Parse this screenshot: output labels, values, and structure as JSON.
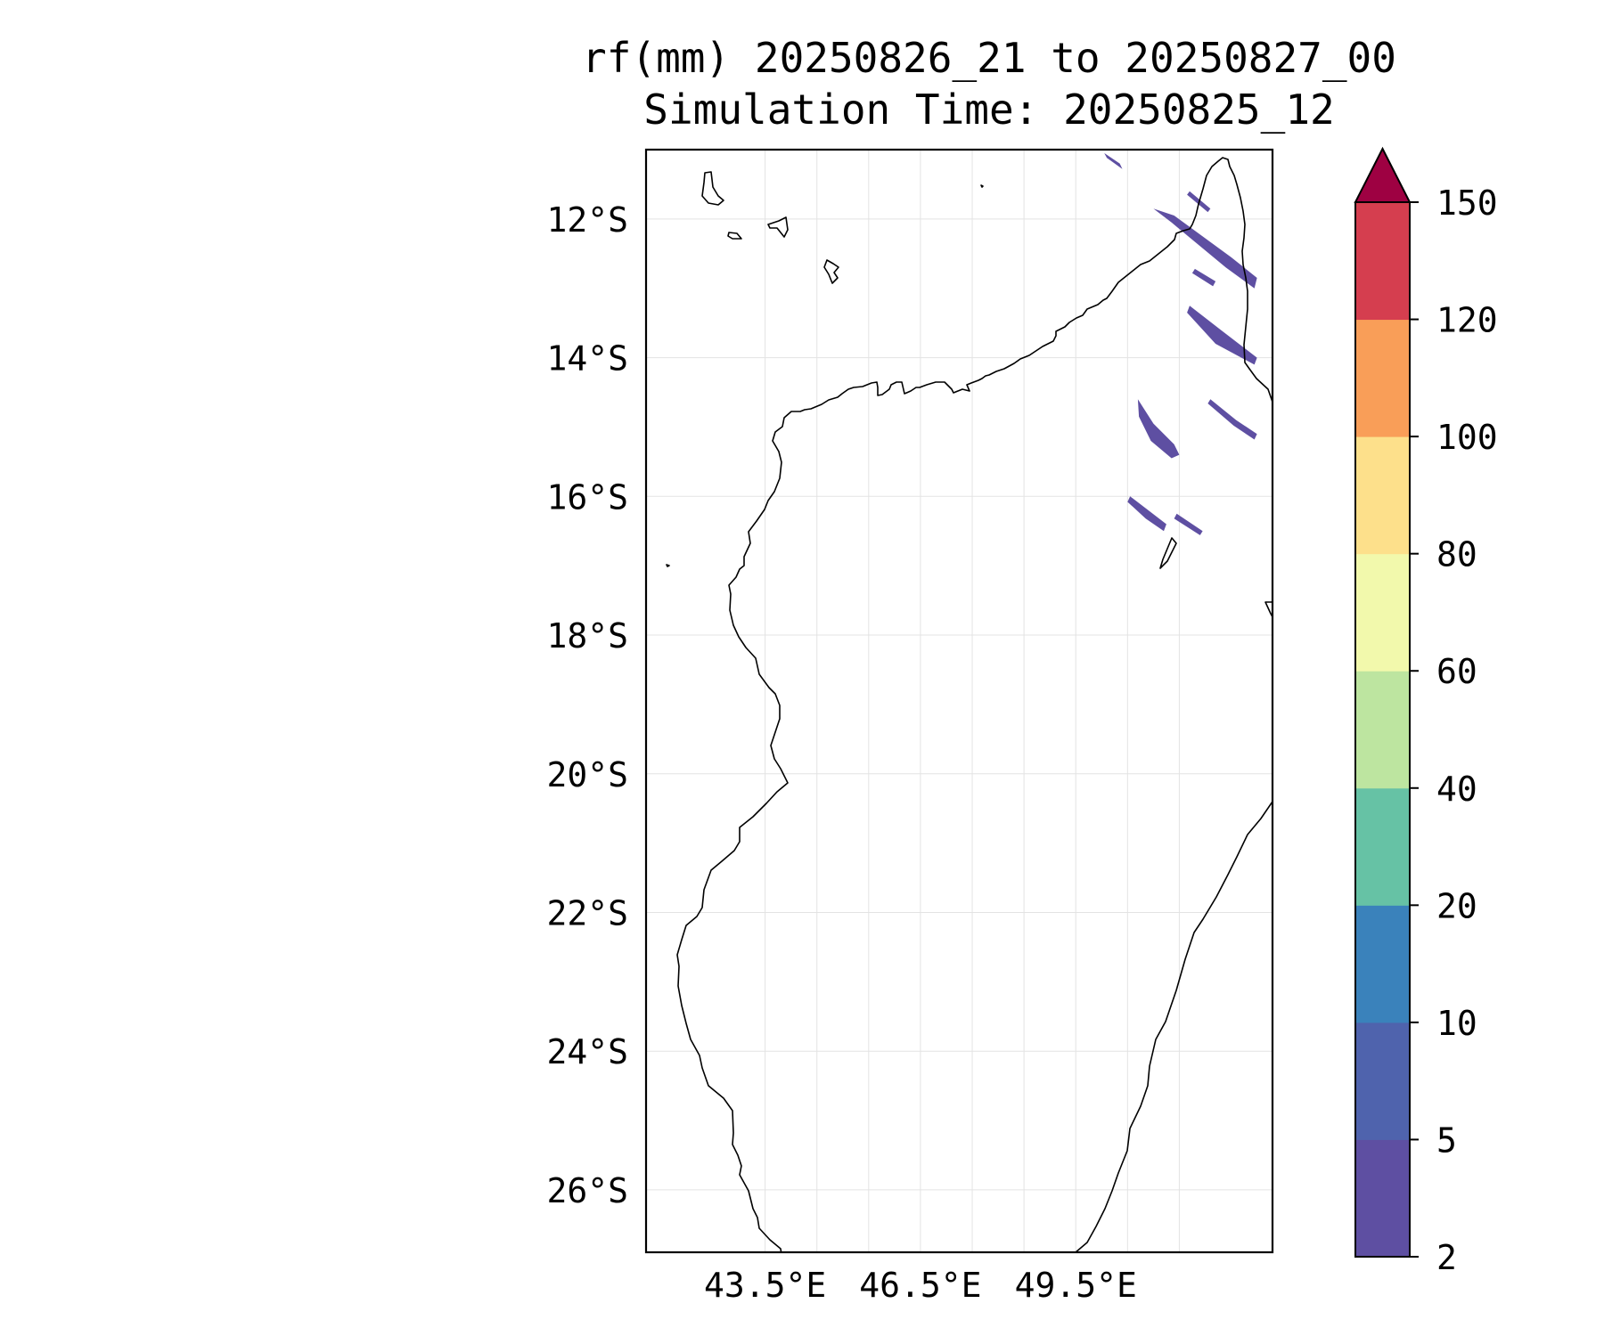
{
  "title": {
    "line1": "rf(mm) 20250826_21 to 20250827_00",
    "line2": "Simulation Time: 20250825_12"
  },
  "map": {
    "region": "Madagascar",
    "lon_range": [
      41.2,
      53.3
    ],
    "lat_range": [
      -11.0,
      -26.9
    ],
    "lon_ticks": [
      {
        "value": 43.5,
        "label": "43.5°E"
      },
      {
        "value": 46.5,
        "label": "46.5°E"
      },
      {
        "value": 49.5,
        "label": "49.5°E"
      }
    ],
    "lon_gridlines": [
      44.5,
      45.5,
      47.5,
      48.5,
      50.5,
      51.5
    ],
    "lat_ticks": [
      {
        "value": -12,
        "label": "12°S"
      },
      {
        "value": -14,
        "label": "14°S"
      },
      {
        "value": -16,
        "label": "16°S"
      },
      {
        "value": -18,
        "label": "18°S"
      },
      {
        "value": -20,
        "label": "20°S"
      },
      {
        "value": -22,
        "label": "22°S"
      },
      {
        "value": -24,
        "label": "24°S"
      },
      {
        "value": -26,
        "label": "26°S"
      }
    ],
    "gridlines": true
  },
  "colorbar": {
    "levels": [
      "2",
      "5",
      "10",
      "20",
      "40",
      "60",
      "80",
      "100",
      "120",
      "150"
    ],
    "colors": [
      "#5e4fa2",
      "#4f63ad",
      "#3a82bb",
      "#66c2a5",
      "#bde5a0",
      "#f2f9ac",
      "#fde08b",
      "#f99e58",
      "#d53e4f"
    ],
    "extend_color": "#9e0142",
    "extend": "max"
  },
  "rain_bands": [
    {
      "level": "2-5",
      "color": "#5e4fa2",
      "points": [
        [
          50.05,
          -11.05
        ],
        [
          50.35,
          -11.2
        ],
        [
          50.4,
          -11.28
        ],
        [
          50.1,
          -11.12
        ]
      ]
    },
    {
      "level": "2-5",
      "color": "#5e4fa2",
      "points": [
        [
          51.7,
          -11.6
        ],
        [
          52.1,
          -11.85
        ],
        [
          52.05,
          -11.9
        ],
        [
          51.65,
          -11.65
        ]
      ]
    },
    {
      "level": "2-5",
      "color": "#5e4fa2",
      "points": [
        [
          51.0,
          -11.85
        ],
        [
          51.4,
          -11.95
        ],
        [
          52.5,
          -12.55
        ],
        [
          53.0,
          -12.85
        ],
        [
          52.95,
          -13.0
        ],
        [
          52.4,
          -12.7
        ],
        [
          51.35,
          -12.05
        ]
      ]
    },
    {
      "level": "2-5",
      "color": "#5e4fa2",
      "points": [
        [
          51.8,
          -12.72
        ],
        [
          52.2,
          -12.9
        ],
        [
          52.15,
          -12.97
        ],
        [
          51.75,
          -12.78
        ]
      ]
    },
    {
      "level": "2-5",
      "color": "#5e4fa2",
      "points": [
        [
          51.7,
          -13.25
        ],
        [
          52.3,
          -13.6
        ],
        [
          53.0,
          -14.0
        ],
        [
          52.95,
          -14.1
        ],
        [
          52.2,
          -13.8
        ],
        [
          51.65,
          -13.35
        ]
      ]
    },
    {
      "level": "2-5",
      "color": "#5e4fa2",
      "points": [
        [
          50.7,
          -14.6
        ],
        [
          51.0,
          -14.95
        ],
        [
          51.4,
          -15.25
        ],
        [
          51.5,
          -15.4
        ],
        [
          51.35,
          -15.45
        ],
        [
          50.95,
          -15.2
        ],
        [
          50.72,
          -14.85
        ]
      ]
    },
    {
      "level": "2-5",
      "color": "#5e4fa2",
      "points": [
        [
          52.1,
          -14.6
        ],
        [
          52.6,
          -14.9
        ],
        [
          53.0,
          -15.1
        ],
        [
          52.95,
          -15.18
        ],
        [
          52.55,
          -14.98
        ],
        [
          52.05,
          -14.66
        ]
      ]
    },
    {
      "level": "2-5",
      "color": "#5e4fa2",
      "points": [
        [
          50.55,
          -16.0
        ],
        [
          50.9,
          -16.2
        ],
        [
          51.25,
          -16.4
        ],
        [
          51.2,
          -16.5
        ],
        [
          50.85,
          -16.32
        ],
        [
          50.5,
          -16.08
        ]
      ]
    },
    {
      "level": "2-5",
      "color": "#5e4fa2",
      "points": [
        [
          51.45,
          -16.25
        ],
        [
          51.95,
          -16.5
        ],
        [
          51.9,
          -16.56
        ],
        [
          51.4,
          -16.32
        ]
      ]
    }
  ]
}
